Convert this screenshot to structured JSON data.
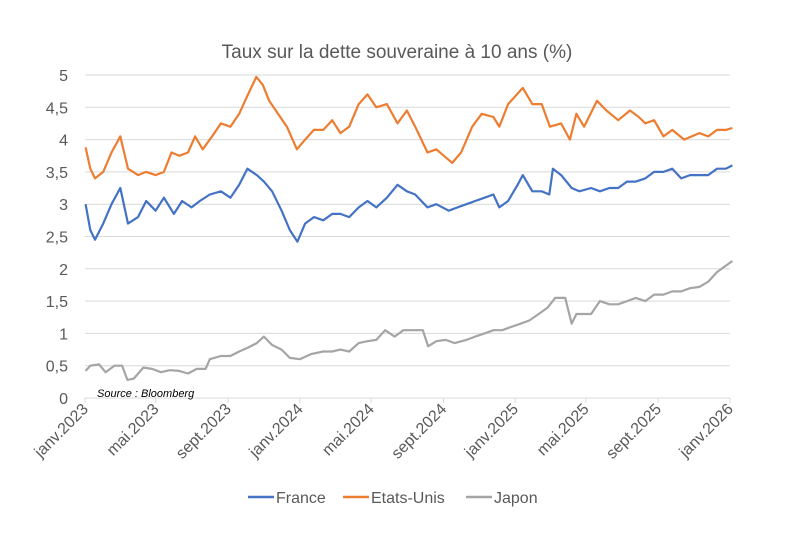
{
  "chart_data": {
    "type": "line",
    "title": "Taux sur la dette souveraine à 10 ans (%)",
    "source": "Source : Bloomberg",
    "xlabel": "",
    "ylabel": "",
    "ylim": [
      0,
      5
    ],
    "xlim": [
      "2023-01-01",
      "2026-01-01"
    ],
    "yticks": [
      0,
      0.5,
      1,
      1.5,
      2,
      2.5,
      3,
      3.5,
      4,
      4.5,
      5
    ],
    "ytick_labels": [
      "0",
      "0,5",
      "1",
      "1,5",
      "2",
      "2,5",
      "3",
      "3,5",
      "4",
      "4,5",
      "5"
    ],
    "xticks": [
      "2023-01-01",
      "2023-05-01",
      "2023-09-01",
      "2024-01-01",
      "2024-05-01",
      "2024-09-01",
      "2025-01-01",
      "2025-05-01",
      "2025-09-01",
      "2026-01-01"
    ],
    "xtick_labels": [
      "janv.2023",
      "mai.2023",
      "sept.2023",
      "janv.2024",
      "mai.2024",
      "sept.2024",
      "janv.2025",
      "mai.2025",
      "sept.2025",
      "janv.2026"
    ],
    "grid": true,
    "legend_position": "bottom",
    "series": [
      {
        "name": "France",
        "color": "#4472C4",
        "points": [
          [
            "2023-01-02",
            3.0
          ],
          [
            "2023-01-10",
            2.6
          ],
          [
            "2023-01-18",
            2.45
          ],
          [
            "2023-02-01",
            2.7
          ],
          [
            "2023-02-15",
            3.0
          ],
          [
            "2023-03-02",
            3.25
          ],
          [
            "2023-03-15",
            2.7
          ],
          [
            "2023-04-01",
            2.8
          ],
          [
            "2023-04-15",
            3.05
          ],
          [
            "2023-05-01",
            2.9
          ],
          [
            "2023-05-15",
            3.1
          ],
          [
            "2023-06-01",
            2.85
          ],
          [
            "2023-06-15",
            3.05
          ],
          [
            "2023-07-01",
            2.95
          ],
          [
            "2023-07-15",
            3.05
          ],
          [
            "2023-08-01",
            3.15
          ],
          [
            "2023-08-20",
            3.2
          ],
          [
            "2023-09-05",
            3.1
          ],
          [
            "2023-09-20",
            3.3
          ],
          [
            "2023-10-04",
            3.55
          ],
          [
            "2023-10-20",
            3.45
          ],
          [
            "2023-11-01",
            3.35
          ],
          [
            "2023-11-15",
            3.2
          ],
          [
            "2023-12-01",
            2.9
          ],
          [
            "2023-12-15",
            2.6
          ],
          [
            "2023-12-28",
            2.42
          ],
          [
            "2024-01-10",
            2.7
          ],
          [
            "2024-01-25",
            2.8
          ],
          [
            "2024-02-10",
            2.75
          ],
          [
            "2024-02-25",
            2.85
          ],
          [
            "2024-03-10",
            2.85
          ],
          [
            "2024-03-25",
            2.8
          ],
          [
            "2024-04-10",
            2.95
          ],
          [
            "2024-04-25",
            3.05
          ],
          [
            "2024-05-10",
            2.95
          ],
          [
            "2024-05-28",
            3.1
          ],
          [
            "2024-06-15",
            3.3
          ],
          [
            "2024-07-01",
            3.2
          ],
          [
            "2024-07-15",
            3.15
          ],
          [
            "2024-08-05",
            2.95
          ],
          [
            "2024-08-20",
            3.0
          ],
          [
            "2024-09-10",
            2.9
          ],
          [
            "2024-09-25",
            2.95
          ],
          [
            "2024-10-10",
            3.0
          ],
          [
            "2024-10-25",
            3.05
          ],
          [
            "2024-11-10",
            3.1
          ],
          [
            "2024-11-25",
            3.15
          ],
          [
            "2024-12-05",
            2.95
          ],
          [
            "2024-12-20",
            3.05
          ],
          [
            "2025-01-05",
            3.3
          ],
          [
            "2025-01-14",
            3.45
          ],
          [
            "2025-01-30",
            3.2
          ],
          [
            "2025-02-15",
            3.2
          ],
          [
            "2025-02-28",
            3.15
          ],
          [
            "2025-03-06",
            3.55
          ],
          [
            "2025-03-20",
            3.45
          ],
          [
            "2025-04-07",
            3.25
          ],
          [
            "2025-04-20",
            3.2
          ],
          [
            "2025-05-10",
            3.25
          ],
          [
            "2025-05-25",
            3.2
          ],
          [
            "2025-06-10",
            3.25
          ],
          [
            "2025-06-25",
            3.25
          ],
          [
            "2025-07-10",
            3.35
          ],
          [
            "2025-07-25",
            3.35
          ],
          [
            "2025-08-10",
            3.4
          ],
          [
            "2025-08-25",
            3.5
          ],
          [
            "2025-09-10",
            3.5
          ],
          [
            "2025-09-25",
            3.55
          ],
          [
            "2025-10-10",
            3.4
          ],
          [
            "2025-10-25",
            3.45
          ],
          [
            "2025-11-10",
            3.45
          ],
          [
            "2025-11-25",
            3.45
          ],
          [
            "2025-12-10",
            3.55
          ],
          [
            "2025-12-25",
            3.55
          ],
          [
            "2026-01-05",
            3.6
          ]
        ]
      },
      {
        "name": "Etats-Unis",
        "color": "#ED7D31",
        "points": [
          [
            "2023-01-02",
            3.88
          ],
          [
            "2023-01-10",
            3.55
          ],
          [
            "2023-01-18",
            3.4
          ],
          [
            "2023-02-01",
            3.5
          ],
          [
            "2023-02-15",
            3.8
          ],
          [
            "2023-03-02",
            4.05
          ],
          [
            "2023-03-15",
            3.55
          ],
          [
            "2023-04-01",
            3.45
          ],
          [
            "2023-04-15",
            3.5
          ],
          [
            "2023-05-01",
            3.45
          ],
          [
            "2023-05-15",
            3.5
          ],
          [
            "2023-05-28",
            3.8
          ],
          [
            "2023-06-10",
            3.75
          ],
          [
            "2023-06-25",
            3.8
          ],
          [
            "2023-07-07",
            4.05
          ],
          [
            "2023-07-20",
            3.85
          ],
          [
            "2023-08-05",
            4.05
          ],
          [
            "2023-08-20",
            4.25
          ],
          [
            "2023-09-05",
            4.2
          ],
          [
            "2023-09-20",
            4.4
          ],
          [
            "2023-10-05",
            4.7
          ],
          [
            "2023-10-19",
            4.97
          ],
          [
            "2023-10-30",
            4.85
          ],
          [
            "2023-11-10",
            4.6
          ],
          [
            "2023-11-25",
            4.4
          ],
          [
            "2023-12-10",
            4.2
          ],
          [
            "2023-12-27",
            3.85
          ],
          [
            "2024-01-10",
            4.0
          ],
          [
            "2024-01-25",
            4.15
          ],
          [
            "2024-02-10",
            4.15
          ],
          [
            "2024-02-25",
            4.3
          ],
          [
            "2024-03-10",
            4.1
          ],
          [
            "2024-03-25",
            4.2
          ],
          [
            "2024-04-10",
            4.55
          ],
          [
            "2024-04-25",
            4.7
          ],
          [
            "2024-05-10",
            4.5
          ],
          [
            "2024-05-28",
            4.55
          ],
          [
            "2024-06-15",
            4.25
          ],
          [
            "2024-07-01",
            4.45
          ],
          [
            "2024-07-15",
            4.2
          ],
          [
            "2024-08-05",
            3.8
          ],
          [
            "2024-08-20",
            3.85
          ],
          [
            "2024-09-16",
            3.64
          ],
          [
            "2024-10-01",
            3.8
          ],
          [
            "2024-10-20",
            4.2
          ],
          [
            "2024-11-05",
            4.4
          ],
          [
            "2024-11-25",
            4.35
          ],
          [
            "2024-12-05",
            4.2
          ],
          [
            "2024-12-20",
            4.55
          ],
          [
            "2025-01-14",
            4.8
          ],
          [
            "2025-01-30",
            4.55
          ],
          [
            "2025-02-15",
            4.55
          ],
          [
            "2025-03-01",
            4.2
          ],
          [
            "2025-03-20",
            4.25
          ],
          [
            "2025-04-04",
            4.0
          ],
          [
            "2025-04-15",
            4.4
          ],
          [
            "2025-04-28",
            4.2
          ],
          [
            "2025-05-20",
            4.6
          ],
          [
            "2025-06-05",
            4.45
          ],
          [
            "2025-06-25",
            4.3
          ],
          [
            "2025-07-15",
            4.45
          ],
          [
            "2025-07-30",
            4.35
          ],
          [
            "2025-08-10",
            4.25
          ],
          [
            "2025-08-25",
            4.3
          ],
          [
            "2025-09-10",
            4.05
          ],
          [
            "2025-09-25",
            4.15
          ],
          [
            "2025-10-15",
            4.0
          ],
          [
            "2025-10-28",
            4.05
          ],
          [
            "2025-11-10",
            4.1
          ],
          [
            "2025-11-25",
            4.05
          ],
          [
            "2025-12-10",
            4.15
          ],
          [
            "2025-12-25",
            4.15
          ],
          [
            "2026-01-05",
            4.18
          ]
        ]
      },
      {
        "name": "Japon",
        "color": "#A5A5A5",
        "points": [
          [
            "2023-01-02",
            0.42
          ],
          [
            "2023-01-10",
            0.5
          ],
          [
            "2023-01-25",
            0.52
          ],
          [
            "2023-02-05",
            0.4
          ],
          [
            "2023-02-20",
            0.5
          ],
          [
            "2023-03-05",
            0.5
          ],
          [
            "2023-03-14",
            0.28
          ],
          [
            "2023-03-25",
            0.3
          ],
          [
            "2023-04-10",
            0.47
          ],
          [
            "2023-04-25",
            0.45
          ],
          [
            "2023-05-10",
            0.4
          ],
          [
            "2023-05-25",
            0.43
          ],
          [
            "2023-06-10",
            0.42
          ],
          [
            "2023-06-25",
            0.38
          ],
          [
            "2023-07-10",
            0.45
          ],
          [
            "2023-07-25",
            0.45
          ],
          [
            "2023-08-01",
            0.6
          ],
          [
            "2023-08-20",
            0.65
          ],
          [
            "2023-09-05",
            0.65
          ],
          [
            "2023-09-20",
            0.72
          ],
          [
            "2023-10-05",
            0.78
          ],
          [
            "2023-10-20",
            0.85
          ],
          [
            "2023-11-01",
            0.95
          ],
          [
            "2023-11-15",
            0.82
          ],
          [
            "2023-12-01",
            0.75
          ],
          [
            "2023-12-15",
            0.62
          ],
          [
            "2024-01-01",
            0.6
          ],
          [
            "2024-01-20",
            0.68
          ],
          [
            "2024-02-10",
            0.72
          ],
          [
            "2024-02-25",
            0.72
          ],
          [
            "2024-03-10",
            0.75
          ],
          [
            "2024-03-25",
            0.72
          ],
          [
            "2024-04-10",
            0.85
          ],
          [
            "2024-04-25",
            0.88
          ],
          [
            "2024-05-10",
            0.9
          ],
          [
            "2024-05-25",
            1.05
          ],
          [
            "2024-06-10",
            0.95
          ],
          [
            "2024-06-25",
            1.05
          ],
          [
            "2024-07-10",
            1.05
          ],
          [
            "2024-07-28",
            1.05
          ],
          [
            "2024-08-06",
            0.8
          ],
          [
            "2024-08-20",
            0.88
          ],
          [
            "2024-09-05",
            0.9
          ],
          [
            "2024-09-20",
            0.85
          ],
          [
            "2024-10-10",
            0.9
          ],
          [
            "2024-10-25",
            0.95
          ],
          [
            "2024-11-10",
            1.0
          ],
          [
            "2024-11-25",
            1.05
          ],
          [
            "2024-12-10",
            1.05
          ],
          [
            "2024-12-25",
            1.1
          ],
          [
            "2025-01-10",
            1.15
          ],
          [
            "2025-01-25",
            1.2
          ],
          [
            "2025-02-10",
            1.3
          ],
          [
            "2025-02-25",
            1.4
          ],
          [
            "2025-03-10",
            1.55
          ],
          [
            "2025-03-27",
            1.55
          ],
          [
            "2025-04-07",
            1.15
          ],
          [
            "2025-04-15",
            1.3
          ],
          [
            "2025-04-28",
            1.3
          ],
          [
            "2025-05-10",
            1.3
          ],
          [
            "2025-05-25",
            1.5
          ],
          [
            "2025-06-10",
            1.45
          ],
          [
            "2025-06-25",
            1.45
          ],
          [
            "2025-07-10",
            1.5
          ],
          [
            "2025-07-25",
            1.55
          ],
          [
            "2025-08-10",
            1.5
          ],
          [
            "2025-08-25",
            1.6
          ],
          [
            "2025-09-10",
            1.6
          ],
          [
            "2025-09-25",
            1.65
          ],
          [
            "2025-10-10",
            1.65
          ],
          [
            "2025-10-25",
            1.7
          ],
          [
            "2025-11-10",
            1.72
          ],
          [
            "2025-11-25",
            1.8
          ],
          [
            "2025-12-10",
            1.95
          ],
          [
            "2025-12-25",
            2.05
          ],
          [
            "2026-01-05",
            2.12
          ]
        ]
      }
    ]
  }
}
